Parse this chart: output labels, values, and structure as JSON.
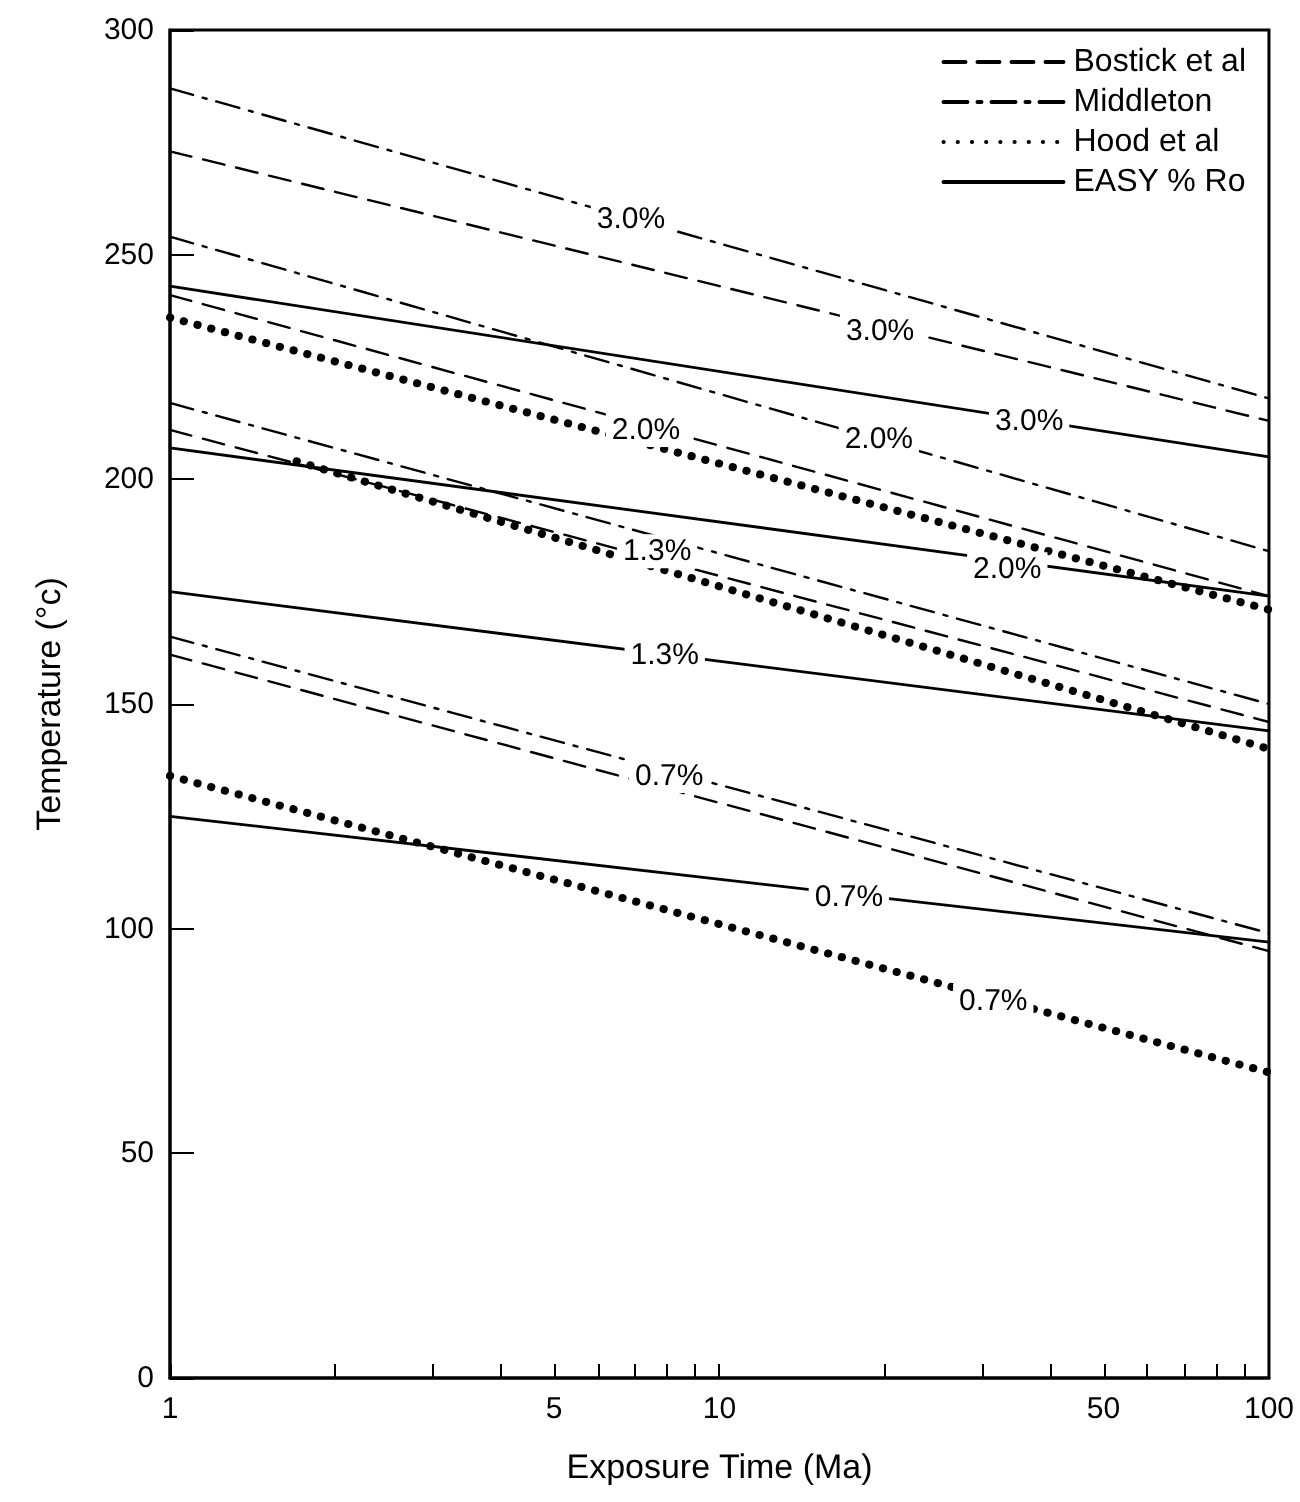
{
  "chart_data": {
    "type": "line",
    "xlabel": "Exposure Time (Ma)",
    "ylabel": "Temperature (°c)",
    "log": "x",
    "xlim": [
      1,
      100
    ],
    "ylim": [
      0,
      300
    ],
    "xticks": [
      1,
      {
        "value": 2,
        "label": null
      },
      {
        "value": 3,
        "label": null
      },
      {
        "value": 4,
        "label": null
      },
      5,
      {
        "value": 6,
        "label": null
      },
      {
        "value": 7,
        "label": null
      },
      {
        "value": 8,
        "label": null
      },
      {
        "value": 9,
        "label": null
      },
      10,
      {
        "value": 20,
        "label": null
      },
      {
        "value": 30,
        "label": null
      },
      {
        "value": 40,
        "label": null
      },
      50,
      {
        "value": 60,
        "label": null
      },
      {
        "value": 70,
        "label": null
      },
      {
        "value": 80,
        "label": null
      },
      {
        "value": 90,
        "label": null
      },
      100
    ],
    "yticks": [
      0,
      50,
      100,
      150,
      200,
      250,
      300
    ],
    "grid": false,
    "legend": "top right",
    "marker": "none",
    "series": [
      {
        "name": "Bostick et al",
        "color": "#000000",
        "line_style": "dashed",
        "x": [
          1,
          100
        ],
        "values": [
          273,
          213
        ]
      },
      {
        "color": "#000000",
        "line_style": "dashed",
        "x": [
          1,
          100
        ],
        "values": [
          241,
          174
        ]
      },
      {
        "color": "#000000",
        "line_style": "dashed",
        "x": [
          1,
          100
        ],
        "values": [
          211,
          146
        ]
      },
      {
        "color": "#000000",
        "line_style": "dashed",
        "x": [
          1,
          100
        ],
        "values": [
          161,
          95
        ]
      },
      {
        "name": "Middleton",
        "color": "#000000",
        "line_style": "dashdot",
        "x": [
          1,
          100
        ],
        "values": [
          287,
          218
        ]
      },
      {
        "color": "#000000",
        "line_style": "dashdot",
        "x": [
          1,
          100
        ],
        "values": [
          254,
          184
        ]
      },
      {
        "color": "#000000",
        "line_style": "dashdot",
        "x": [
          1,
          100
        ],
        "values": [
          217,
          150
        ]
      },
      {
        "color": "#000000",
        "line_style": "dashdot",
        "x": [
          1,
          100
        ],
        "values": [
          165,
          99
        ]
      },
      {
        "name": "Hood et al",
        "color": "#000000",
        "line_style": "dotted",
        "x": [
          1,
          100
        ],
        "values": [
          236,
          171
        ]
      },
      {
        "color": "#000000",
        "line_style": "dotted",
        "x": [
          1.7,
          100
        ],
        "values": [
          204,
          140
        ]
      },
      {
        "color": "#000000",
        "line_style": "dotted",
        "x": [
          1,
          100
        ],
        "values": [
          134,
          68
        ]
      },
      {
        "name": "EASY % Ro",
        "color": "#000000",
        "line_style": "solid",
        "x": [
          1,
          100
        ],
        "values": [
          243,
          205
        ]
      },
      {
        "color": "#000000",
        "line_style": "solid",
        "x": [
          1,
          100
        ],
        "values": [
          207,
          174
        ]
      },
      {
        "color": "#000000",
        "line_style": "solid",
        "x": [
          1,
          100
        ],
        "values": [
          175,
          144
        ]
      },
      {
        "color": "#000000",
        "line_style": "solid",
        "x": [
          1,
          100
        ],
        "values": [
          125,
          97
        ]
      }
    ],
    "annotations": [
      {
        "text": "3.0%",
        "x": 6.9,
        "y": 258
      },
      {
        "text": "3.0%",
        "x": 19.6,
        "y": 233
      },
      {
        "text": "3.0%",
        "x": 36.6,
        "y": 213
      },
      {
        "text": "2.0%",
        "x": 7.35,
        "y": 211
      },
      {
        "text": "2.0%",
        "x": 19.5,
        "y": 209
      },
      {
        "text": "2.0%",
        "x": 33.4,
        "y": 180
      },
      {
        "text": "1.3%",
        "x": 7.7,
        "y": 184
      },
      {
        "text": "1.3%",
        "x": 7.95,
        "y": 161
      },
      {
        "text": "0.7%",
        "x": 8.1,
        "y": 134
      },
      {
        "text": "0.7%",
        "x": 17.2,
        "y": 107
      },
      {
        "text": "0.7%",
        "x": 31.5,
        "y": 84
      }
    ]
  }
}
